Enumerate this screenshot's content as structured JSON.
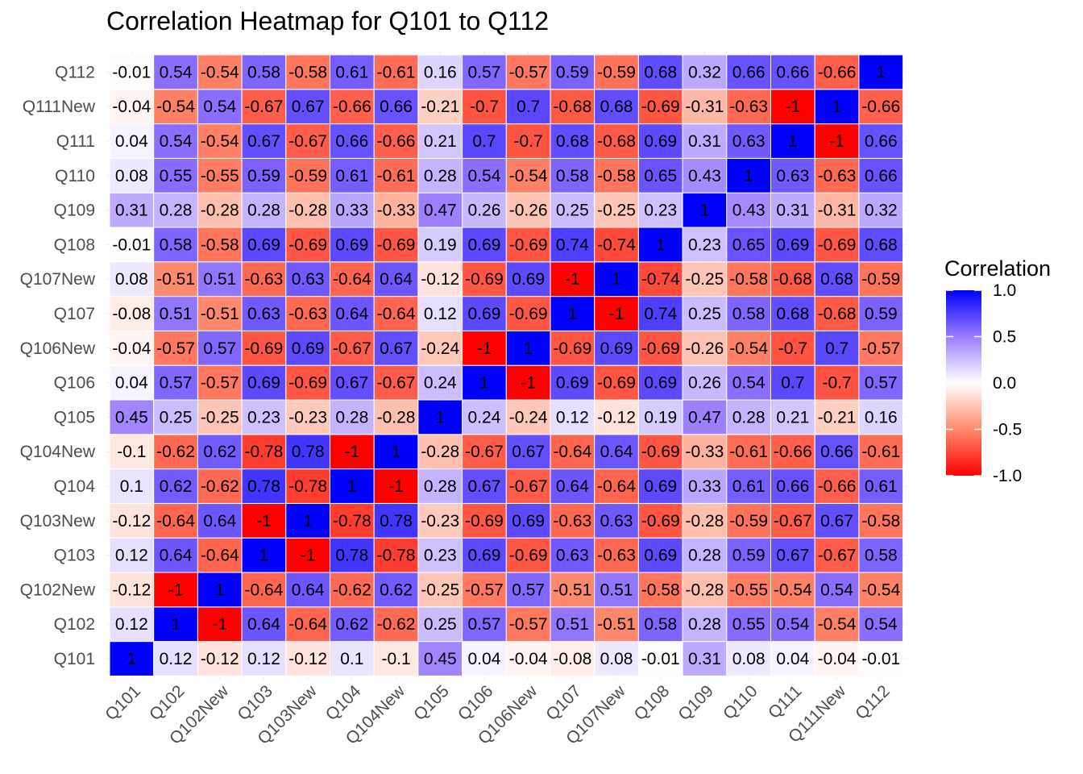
{
  "chart_data": {
    "type": "heatmap",
    "title": "Correlation Heatmap for Q101 to Q112",
    "xlabel": "",
    "ylabel": "",
    "variables": [
      "Q101",
      "Q102",
      "Q102New",
      "Q103",
      "Q103New",
      "Q104",
      "Q104New",
      "Q105",
      "Q106",
      "Q106New",
      "Q107",
      "Q107New",
      "Q108",
      "Q109",
      "Q110",
      "Q111",
      "Q111New",
      "Q112"
    ],
    "matrix": [
      [
        1,
        0.12,
        -0.12,
        0.12,
        -0.12,
        0.1,
        -0.1,
        0.45,
        0.04,
        -0.04,
        -0.08,
        0.08,
        -0.01,
        0.31,
        0.08,
        0.04,
        -0.04,
        -0.01
      ],
      [
        0.12,
        1,
        -1,
        0.64,
        -0.64,
        0.62,
        -0.62,
        0.25,
        0.57,
        -0.57,
        0.51,
        -0.51,
        0.58,
        0.28,
        0.55,
        0.54,
        -0.54,
        0.54
      ],
      [
        -0.12,
        -1,
        1,
        -0.64,
        0.64,
        -0.62,
        0.62,
        -0.25,
        -0.57,
        0.57,
        -0.51,
        0.51,
        -0.58,
        -0.28,
        -0.55,
        -0.54,
        0.54,
        -0.54
      ],
      [
        0.12,
        0.64,
        -0.64,
        1,
        -1,
        0.78,
        -0.78,
        0.23,
        0.69,
        -0.69,
        0.63,
        -0.63,
        0.69,
        0.28,
        0.59,
        0.67,
        -0.67,
        0.58
      ],
      [
        -0.12,
        -0.64,
        0.64,
        -1,
        1,
        -0.78,
        0.78,
        -0.23,
        -0.69,
        0.69,
        -0.63,
        0.63,
        -0.69,
        -0.28,
        -0.59,
        -0.67,
        0.67,
        -0.58
      ],
      [
        0.1,
        0.62,
        -0.62,
        0.78,
        -0.78,
        1,
        -1,
        0.28,
        0.67,
        -0.67,
        0.64,
        -0.64,
        0.69,
        0.33,
        0.61,
        0.66,
        -0.66,
        0.61
      ],
      [
        -0.1,
        -0.62,
        0.62,
        -0.78,
        0.78,
        -1,
        1,
        -0.28,
        -0.67,
        0.67,
        -0.64,
        0.64,
        -0.69,
        -0.33,
        -0.61,
        -0.66,
        0.66,
        -0.61
      ],
      [
        0.45,
        0.25,
        -0.25,
        0.23,
        -0.23,
        0.28,
        -0.28,
        1,
        0.24,
        -0.24,
        0.12,
        -0.12,
        0.19,
        0.47,
        0.28,
        0.21,
        -0.21,
        0.16
      ],
      [
        0.04,
        0.57,
        -0.57,
        0.69,
        -0.69,
        0.67,
        -0.67,
        0.24,
        1,
        -1,
        0.69,
        -0.69,
        0.69,
        0.26,
        0.54,
        0.7,
        -0.7,
        0.57
      ],
      [
        -0.04,
        -0.57,
        0.57,
        -0.69,
        0.69,
        -0.67,
        0.67,
        -0.24,
        -1,
        1,
        -0.69,
        0.69,
        -0.69,
        -0.26,
        -0.54,
        -0.7,
        0.7,
        -0.57
      ],
      [
        -0.08,
        0.51,
        -0.51,
        0.63,
        -0.63,
        0.64,
        -0.64,
        0.12,
        0.69,
        -0.69,
        1,
        -1,
        0.74,
        0.25,
        0.58,
        0.68,
        -0.68,
        0.59
      ],
      [
        0.08,
        -0.51,
        0.51,
        -0.63,
        0.63,
        -0.64,
        0.64,
        -0.12,
        -0.69,
        0.69,
        -1,
        1,
        -0.74,
        -0.25,
        -0.58,
        -0.68,
        0.68,
        -0.59
      ],
      [
        -0.01,
        0.58,
        -0.58,
        0.69,
        -0.69,
        0.69,
        -0.69,
        0.19,
        0.69,
        -0.69,
        0.74,
        -0.74,
        1,
        0.23,
        0.65,
        0.69,
        -0.69,
        0.68
      ],
      [
        0.31,
        0.28,
        -0.28,
        0.28,
        -0.28,
        0.33,
        -0.33,
        0.47,
        0.26,
        -0.26,
        0.25,
        -0.25,
        0.23,
        1,
        0.43,
        0.31,
        -0.31,
        0.32
      ],
      [
        0.08,
        0.55,
        -0.55,
        0.59,
        -0.59,
        0.61,
        -0.61,
        0.28,
        0.54,
        -0.54,
        0.58,
        -0.58,
        0.65,
        0.43,
        1,
        0.63,
        -0.63,
        0.66
      ],
      [
        0.04,
        0.54,
        -0.54,
        0.67,
        -0.67,
        0.66,
        -0.66,
        0.21,
        0.7,
        -0.7,
        0.68,
        -0.68,
        0.69,
        0.31,
        0.63,
        1,
        -1,
        0.66
      ],
      [
        -0.04,
        -0.54,
        0.54,
        -0.67,
        0.67,
        -0.66,
        0.66,
        -0.21,
        -0.7,
        0.7,
        -0.68,
        0.68,
        -0.69,
        -0.31,
        -0.63,
        -1,
        1,
        -0.66
      ],
      [
        -0.01,
        0.54,
        -0.54,
        0.58,
        -0.58,
        0.61,
        -0.61,
        0.16,
        0.57,
        -0.57,
        0.59,
        -0.59,
        0.68,
        0.32,
        0.66,
        0.66,
        -0.66,
        1
      ]
    ],
    "color_scale": {
      "low": "#ff0000",
      "mid": "#ffffff",
      "high": "#0000ff",
      "limits": [
        -1,
        1
      ]
    },
    "legend": {
      "title": "Correlation",
      "ticks": [
        "1.0",
        "0.5",
        "0.0",
        "-0.5",
        "-1.0"
      ],
      "position": "right"
    },
    "grid": true
  }
}
